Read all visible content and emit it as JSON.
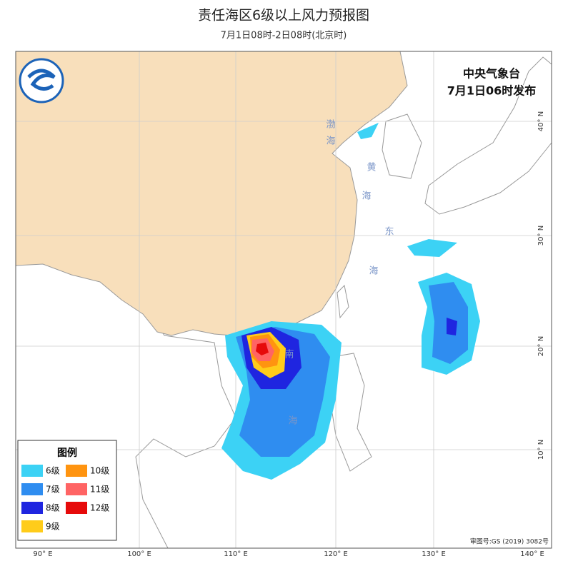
{
  "header": {
    "title": "责任海区6级以上风力预报图",
    "subtitle": "7月1日08时-2日08时(北京时)"
  },
  "issuer": {
    "agency": "中央气象台",
    "issued": "7月1日06时发布"
  },
  "legend": {
    "title": "图例",
    "items": [
      {
        "label": "6级",
        "color": "#3cd2f5"
      },
      {
        "label": "7级",
        "color": "#2f8df0"
      },
      {
        "label": "8级",
        "color": "#1f25e0"
      },
      {
        "label": "9级",
        "color": "#ffcc1a"
      },
      {
        "label": "10级",
        "color": "#ff9410"
      },
      {
        "label": "11级",
        "color": "#ff6464"
      },
      {
        "label": "12级",
        "color": "#e60a0a"
      }
    ]
  },
  "sea_labels": [
    "渤",
    "海",
    "黄",
    "海",
    "东",
    "海",
    "南",
    "海"
  ],
  "longitude_labels": [
    "90° E",
    "100° E",
    "110° E",
    "120° E",
    "130° E",
    "140° E"
  ],
  "latitude_labels": [
    "40° N",
    "30° N",
    "20° N",
    "10° N"
  ],
  "review_number": "审图号:GS (2019) 3082号"
}
